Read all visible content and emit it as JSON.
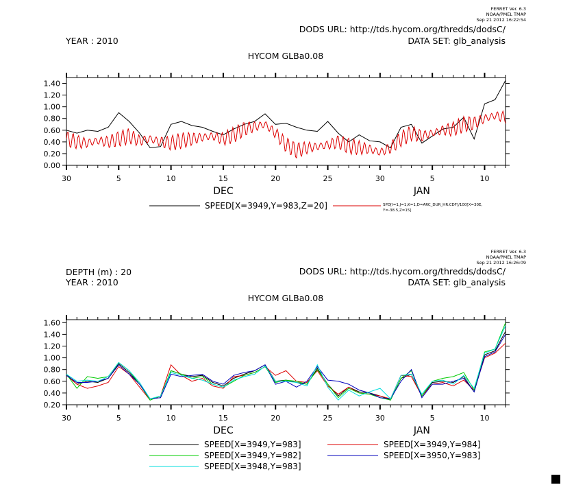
{
  "chart_data": [
    {
      "type": "line",
      "header": {
        "ferret_version": "FERRET Ver. 6.3",
        "org": "NOAA/PMEL TMAP",
        "timestamp": "Sep 21 2012 16:22:54",
        "dods_url": "DODS URL: http://tds.hycom.org/thredds/dodsC/",
        "data_set": "DATA SET: glb_analysis",
        "year": "YEAR : 2010",
        "depth": ""
      },
      "title": "HYCOM GLBa0.08",
      "x_tick_labels": [
        "30",
        "5",
        "10",
        "15",
        "20",
        "25",
        "30",
        "5",
        "10"
      ],
      "month_labels": [
        "DEC",
        "JAN"
      ],
      "y_tick_labels": [
        "0.00",
        "0.20",
        "0.40",
        "0.60",
        "0.80",
        "1.00",
        "1.20",
        "1.40"
      ],
      "ylim": [
        0.0,
        1.5
      ],
      "xlim": [
        0,
        42
      ],
      "legend_line1": "SPEED[X=3949,Y=983,Z=20]",
      "legend_line2a": "SPD[I=1,J=1,K=1,D=ARC_DUR_HR.CDF]/100[X=30E,",
      "legend_line2b": "Y=-38.5,Z=15]",
      "series": [
        {
          "name": "SPEED[X=3949,Y=983,Z=20]",
          "color": "#000000",
          "x": [
            0,
            1,
            2,
            3,
            4,
            5,
            6,
            7,
            8,
            9,
            10,
            11,
            12,
            13,
            14,
            15,
            16,
            17,
            18,
            19,
            20,
            21,
            22,
            23,
            24,
            25,
            26,
            27,
            28,
            29,
            30,
            31,
            32,
            33,
            34,
            35,
            36,
            37,
            38,
            39,
            40,
            41,
            42
          ],
          "values": [
            0.6,
            0.55,
            0.6,
            0.58,
            0.65,
            0.9,
            0.75,
            0.55,
            0.3,
            0.32,
            0.7,
            0.75,
            0.68,
            0.65,
            0.58,
            0.52,
            0.62,
            0.7,
            0.75,
            0.88,
            0.7,
            0.72,
            0.65,
            0.6,
            0.58,
            0.75,
            0.55,
            0.4,
            0.52,
            0.42,
            0.4,
            0.3,
            0.65,
            0.7,
            0.38,
            0.5,
            0.62,
            0.65,
            0.82,
            0.45,
            1.05,
            1.12,
            1.45
          ]
        },
        {
          "name": "SPD[I=1,J=1,K=1,D=ARC_DUR_HR.CDF]/100[X=30E, Y=-38.5,Z=15]",
          "color": "#dd0000",
          "generated": "hourly",
          "x": [
            0,
            1,
            2,
            3,
            4,
            5,
            6,
            7,
            8,
            9,
            10,
            11,
            12,
            13,
            14,
            15,
            16,
            17,
            18,
            19,
            20,
            21,
            22,
            23,
            24,
            25,
            26,
            27,
            28,
            29,
            30,
            31,
            32,
            33,
            34,
            35,
            36,
            37,
            38,
            39,
            40,
            41,
            42
          ],
          "values": [
            0.45,
            0.4,
            0.38,
            0.42,
            0.4,
            0.45,
            0.5,
            0.42,
            0.45,
            0.4,
            0.38,
            0.42,
            0.45,
            0.48,
            0.5,
            0.45,
            0.52,
            0.62,
            0.66,
            0.7,
            0.55,
            0.35,
            0.25,
            0.3,
            0.32,
            0.35,
            0.4,
            0.33,
            0.3,
            0.28,
            0.22,
            0.3,
            0.45,
            0.55,
            0.5,
            0.55,
            0.6,
            0.62,
            0.7,
            0.72,
            0.8,
            0.85,
            0.82
          ],
          "amplitude": 0.12
        }
      ]
    },
    {
      "type": "line",
      "header": {
        "ferret_version": "FERRET Ver. 6.3",
        "org": "NOAA/PMEL TMAP",
        "timestamp": "Sep 21 2012 16:26:09",
        "dods_url": "DODS URL: http://tds.hycom.org/thredds/dodsC/",
        "data_set": "DATA SET: glb_analysis",
        "year": "YEAR : 2010",
        "depth": "DEPTH (m) : 20"
      },
      "title": "HYCOM GLBa0.08",
      "x_tick_labels": [
        "30",
        "5",
        "10",
        "15",
        "20",
        "25",
        "30",
        "5",
        "10"
      ],
      "month_labels": [
        "DEC",
        "JAN"
      ],
      "y_tick_labels": [
        "0.20",
        "0.40",
        "0.60",
        "0.80",
        "1.00",
        "1.20",
        "1.40",
        "1.60"
      ],
      "ylim": [
        0.2,
        1.65
      ],
      "xlim": [
        0,
        42
      ],
      "series": [
        {
          "name": "SPEED[X=3949,Y=983]",
          "color": "#000000",
          "x": [
            0,
            1,
            2,
            3,
            4,
            5,
            6,
            7,
            8,
            9,
            10,
            11,
            12,
            13,
            14,
            15,
            16,
            17,
            18,
            19,
            20,
            21,
            22,
            23,
            24,
            25,
            26,
            27,
            28,
            29,
            30,
            31,
            32,
            33,
            34,
            35,
            36,
            37,
            38,
            39,
            40,
            41,
            42
          ],
          "values": [
            0.72,
            0.55,
            0.6,
            0.58,
            0.65,
            0.9,
            0.75,
            0.55,
            0.3,
            0.32,
            0.78,
            0.72,
            0.68,
            0.7,
            0.58,
            0.52,
            0.65,
            0.72,
            0.78,
            0.88,
            0.6,
            0.62,
            0.58,
            0.55,
            0.82,
            0.55,
            0.35,
            0.5,
            0.42,
            0.4,
            0.35,
            0.28,
            0.65,
            0.72,
            0.35,
            0.58,
            0.6,
            0.58,
            0.68,
            0.42,
            1.05,
            1.12,
            1.45
          ]
        },
        {
          "name": "SPEED[X=3949,Y=984]",
          "color": "#dd0000",
          "x": [
            0,
            1,
            2,
            3,
            4,
            5,
            6,
            7,
            8,
            9,
            10,
            11,
            12,
            13,
            14,
            15,
            16,
            17,
            18,
            19,
            20,
            21,
            22,
            23,
            24,
            25,
            26,
            27,
            28,
            29,
            30,
            31,
            32,
            33,
            34,
            35,
            36,
            37,
            38,
            39,
            40,
            41,
            42
          ],
          "values": [
            0.7,
            0.55,
            0.48,
            0.52,
            0.58,
            0.85,
            0.72,
            0.5,
            0.28,
            0.35,
            0.88,
            0.7,
            0.6,
            0.65,
            0.52,
            0.48,
            0.68,
            0.7,
            0.75,
            0.85,
            0.7,
            0.78,
            0.6,
            0.58,
            0.78,
            0.52,
            0.38,
            0.5,
            0.4,
            0.38,
            0.35,
            0.3,
            0.7,
            0.68,
            0.35,
            0.55,
            0.58,
            0.52,
            0.62,
            0.45,
            1.0,
            1.08,
            1.25
          ]
        },
        {
          "name": "SPEED[X=3949,Y=982]",
          "color": "#00cc00",
          "x": [
            0,
            1,
            2,
            3,
            4,
            5,
            6,
            7,
            8,
            9,
            10,
            11,
            12,
            13,
            14,
            15,
            16,
            17,
            18,
            19,
            20,
            21,
            22,
            23,
            24,
            25,
            26,
            27,
            28,
            29,
            30,
            31,
            32,
            33,
            34,
            35,
            36,
            37,
            38,
            39,
            40,
            41,
            42
          ],
          "values": [
            0.72,
            0.48,
            0.68,
            0.65,
            0.68,
            0.92,
            0.78,
            0.55,
            0.28,
            0.35,
            0.78,
            0.72,
            0.65,
            0.68,
            0.55,
            0.5,
            0.6,
            0.7,
            0.75,
            0.85,
            0.58,
            0.62,
            0.6,
            0.55,
            0.8,
            0.55,
            0.32,
            0.48,
            0.4,
            0.38,
            0.32,
            0.28,
            0.65,
            0.78,
            0.35,
            0.6,
            0.65,
            0.68,
            0.75,
            0.45,
            1.1,
            1.15,
            1.6
          ]
        },
        {
          "name": "SPEED[X=3950,Y=983]",
          "color": "#0000bb",
          "x": [
            0,
            1,
            2,
            3,
            4,
            5,
            6,
            7,
            8,
            9,
            10,
            11,
            12,
            13,
            14,
            15,
            16,
            17,
            18,
            19,
            20,
            21,
            22,
            23,
            24,
            25,
            26,
            27,
            28,
            29,
            30,
            31,
            32,
            33,
            34,
            35,
            36,
            37,
            38,
            39,
            40,
            41,
            42
          ],
          "values": [
            0.7,
            0.58,
            0.58,
            0.6,
            0.65,
            0.88,
            0.72,
            0.55,
            0.3,
            0.32,
            0.72,
            0.68,
            0.7,
            0.72,
            0.6,
            0.55,
            0.7,
            0.75,
            0.78,
            0.88,
            0.55,
            0.6,
            0.5,
            0.6,
            0.85,
            0.62,
            0.6,
            0.55,
            0.45,
            0.4,
            0.32,
            0.3,
            0.6,
            0.8,
            0.32,
            0.55,
            0.55,
            0.6,
            0.65,
            0.42,
            1.02,
            1.1,
            1.4
          ]
        },
        {
          "name": "SPEED[X=3948,Y=983]",
          "color": "#00dddd",
          "x": [
            0,
            1,
            2,
            3,
            4,
            5,
            6,
            7,
            8,
            9,
            10,
            11,
            12,
            13,
            14,
            15,
            16,
            17,
            18,
            19,
            20,
            21,
            22,
            23,
            24,
            25,
            26,
            27,
            28,
            29,
            30,
            31,
            32,
            33,
            34,
            35,
            36,
            37,
            38,
            39,
            40,
            41,
            42
          ],
          "values": [
            0.72,
            0.6,
            0.62,
            0.6,
            0.68,
            0.92,
            0.78,
            0.58,
            0.3,
            0.35,
            0.75,
            0.7,
            0.65,
            0.62,
            0.55,
            0.5,
            0.62,
            0.68,
            0.72,
            0.86,
            0.6,
            0.6,
            0.58,
            0.52,
            0.88,
            0.5,
            0.28,
            0.45,
            0.35,
            0.42,
            0.48,
            0.3,
            0.7,
            0.72,
            0.38,
            0.6,
            0.62,
            0.55,
            0.7,
            0.48,
            1.08,
            1.15,
            1.55
          ]
        }
      ]
    }
  ]
}
